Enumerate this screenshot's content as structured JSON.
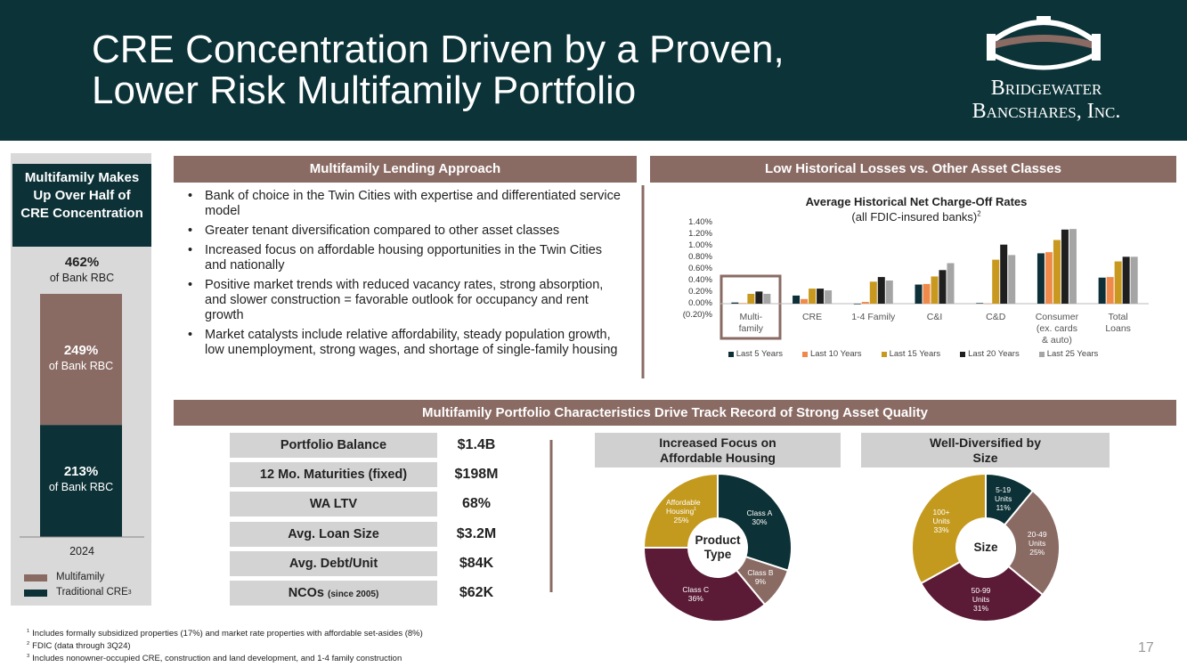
{
  "header": {
    "title": [
      "CRE Concentration Driven by a Proven,",
      "Lower Risk Multifamily Portfolio"
    ],
    "logo": [
      "Bridgewater",
      "Bancshares, Inc."
    ]
  },
  "concentration": {
    "type": "bar",
    "title": "Multifamily Makes Up Over Half of CRE Concentration",
    "total_label": "462%",
    "unit_note": "of Bank RBC",
    "categories": [
      "2024"
    ],
    "series": [
      {
        "name": "Traditional CRE",
        "note": "3",
        "color": "#0c3136",
        "values": [
          213
        ],
        "value_labels": [
          "213%"
        ]
      },
      {
        "name": "Multifamily",
        "color": "#8a6b64",
        "values": [
          249
        ],
        "value_labels": [
          "249%"
        ]
      }
    ],
    "ylim": [
      0,
      462
    ]
  },
  "lending": {
    "heading": "Multifamily Lending Approach",
    "bullets": [
      "Bank of choice in the Twin Cities with expertise and differentiated service model",
      "Greater tenant diversification compared to other asset classes",
      "Increased focus on affordable housing opportunities in the Twin Cities and nationally",
      "Positive market trends with reduced vacancy rates, strong absorption, and slower construction = favorable outlook for occupancy and rent growth",
      "Market catalysts include relative affordability, steady population growth, low unemployment, strong wages, and shortage of single-family housing"
    ]
  },
  "losses": {
    "heading": "Low Historical Losses vs. Other Asset Classes",
    "chart": {
      "type": "bar",
      "title": "Average Historical Net Charge-Off Rates",
      "subtitle": "(all FDIC-insured banks)",
      "subtitle_note": "2",
      "categories": [
        "Multi-family",
        "CRE",
        "1-4 Family",
        "C&I",
        "C&D",
        "Consumer (ex. cards & auto)",
        "Total Loans"
      ],
      "series": [
        {
          "name": "Last 5 Years",
          "color": "#0d3038",
          "values": [
            0.02,
            0.14,
            -0.01,
            0.33,
            0.01,
            0.87,
            0.45
          ]
        },
        {
          "name": "Last 10 Years",
          "color": "#f08a4b",
          "values": [
            0.01,
            0.08,
            0.03,
            0.34,
            0.0,
            0.89,
            0.46
          ]
        },
        {
          "name": "Last 15 Years",
          "color": "#c9991f",
          "values": [
            0.17,
            0.26,
            0.38,
            0.47,
            0.76,
            1.1,
            0.73
          ]
        },
        {
          "name": "Last 20 Years",
          "color": "#1f1f1f",
          "values": [
            0.21,
            0.26,
            0.46,
            0.58,
            1.02,
            1.28,
            0.81
          ]
        },
        {
          "name": "Last 25 Years",
          "color": "#a5a5a5",
          "values": [
            0.17,
            0.23,
            0.4,
            0.7,
            0.84,
            1.29,
            0.81
          ]
        }
      ],
      "ylim": [
        -0.2,
        1.4
      ],
      "yticks": [
        {
          "value": -0.2,
          "label": "(0.20)%"
        },
        {
          "value": 0,
          "label": "0.00%"
        },
        {
          "value": 0.2,
          "label": "0.20%"
        },
        {
          "value": 0.4,
          "label": "0.40%"
        },
        {
          "value": 0.6,
          "label": "0.60%"
        },
        {
          "value": 0.8,
          "label": "0.80%"
        },
        {
          "value": 1.0,
          "label": "1.00%"
        },
        {
          "value": 1.2,
          "label": "1.20%"
        },
        {
          "value": 1.4,
          "label": "1.40%"
        }
      ],
      "legend": "bottom"
    }
  },
  "characteristics": {
    "heading": "Multifamily Portfolio Characteristics Drive Track Record of Strong Asset Quality",
    "table": {
      "rows": [
        {
          "label": "Portfolio Balance",
          "value": "$1.4B"
        },
        {
          "label": "12 Mo. Maturities (fixed)",
          "value": "$198M"
        },
        {
          "label": "WA LTV",
          "value": "68%"
        },
        {
          "label": "Avg. Loan Size",
          "value": "$3.2M"
        },
        {
          "label": "Avg. Debt/Unit",
          "value": "$84K"
        },
        {
          "label": "NCOs",
          "note": "(since 2005)",
          "value": "$62K"
        }
      ]
    },
    "charts": [
      {
        "type": "pie",
        "title": "Increased Focus on Affordable Housing",
        "center_label": "Product Type",
        "slices": [
          {
            "name": "Class A",
            "value": 30,
            "label": "30%",
            "color": "#0c3136"
          },
          {
            "name": "Class B",
            "value": 9,
            "label": "9%",
            "color": "#8a6b64"
          },
          {
            "name": "Class C",
            "value": 36,
            "label": "36%",
            "color": "#5b1a35"
          },
          {
            "name": "Affordable Housing",
            "note": "1",
            "value": 25,
            "label": "25%",
            "color": "#c49a1e"
          }
        ]
      },
      {
        "type": "pie",
        "title": "Well-Diversified by Size",
        "center_label": "Size",
        "slices": [
          {
            "name": "5-19 Units",
            "value": 11,
            "label": "11%",
            "color": "#0c3136"
          },
          {
            "name": "20-49 Units",
            "value": 25,
            "label": "25%",
            "color": "#8a6b64"
          },
          {
            "name": "50-99 Units",
            "value": 31,
            "label": "31%",
            "color": "#5b1a35"
          },
          {
            "name": "100+ Units",
            "value": 33,
            "label": "33%",
            "color": "#c49a1e"
          }
        ]
      }
    ]
  },
  "footnotes": [
    {
      "mark": "1",
      "text": "Includes formally subsidized properties (17%) and market rate properties with affordable set-asides (8%)"
    },
    {
      "mark": "2",
      "text": "FDIC (data through 3Q24)"
    },
    {
      "mark": "3",
      "text": "Includes nonowner-occupied CRE, construction and land development, and 1-4 family construction"
    }
  ],
  "page_number": "17"
}
